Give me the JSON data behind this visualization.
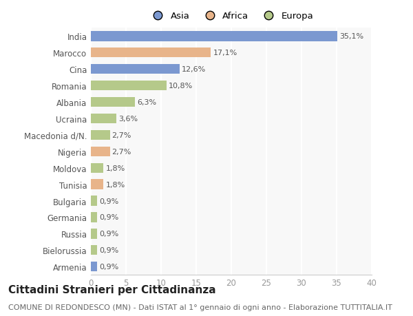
{
  "categories": [
    "India",
    "Marocco",
    "Cina",
    "Romania",
    "Albania",
    "Ucraina",
    "Macedonia d/N.",
    "Nigeria",
    "Moldova",
    "Tunisia",
    "Bulgaria",
    "Germania",
    "Russia",
    "Bielorussia",
    "Armenia"
  ],
  "values": [
    35.1,
    17.1,
    12.6,
    10.8,
    6.3,
    3.6,
    2.7,
    2.7,
    1.8,
    1.8,
    0.9,
    0.9,
    0.9,
    0.9,
    0.9
  ],
  "labels": [
    "35,1%",
    "17,1%",
    "12,6%",
    "10,8%",
    "6,3%",
    "3,6%",
    "2,7%",
    "2,7%",
    "1,8%",
    "1,8%",
    "0,9%",
    "0,9%",
    "0,9%",
    "0,9%",
    "0,9%"
  ],
  "continents": [
    "Asia",
    "Africa",
    "Asia",
    "Europa",
    "Europa",
    "Europa",
    "Europa",
    "Africa",
    "Europa",
    "Africa",
    "Europa",
    "Europa",
    "Europa",
    "Europa",
    "Asia"
  ],
  "colors": {
    "Asia": "#7b98d0",
    "Africa": "#e8b48a",
    "Europa": "#b5c98a"
  },
  "legend_labels": [
    "Asia",
    "Africa",
    "Europa"
  ],
  "title": "Cittadini Stranieri per Cittadinanza",
  "subtitle": "COMUNE DI REDONDESCO (MN) - Dati ISTAT al 1° gennaio di ogni anno - Elaborazione TUTTITALIA.IT",
  "xlim": [
    0,
    40
  ],
  "xticks": [
    0,
    5,
    10,
    15,
    20,
    25,
    30,
    35,
    40
  ],
  "background_color": "#ffffff",
  "plot_bg_color": "#f8f8f8",
  "grid_color": "#ffffff",
  "title_fontsize": 11,
  "subtitle_fontsize": 8,
  "label_fontsize": 8,
  "tick_fontsize": 8.5
}
